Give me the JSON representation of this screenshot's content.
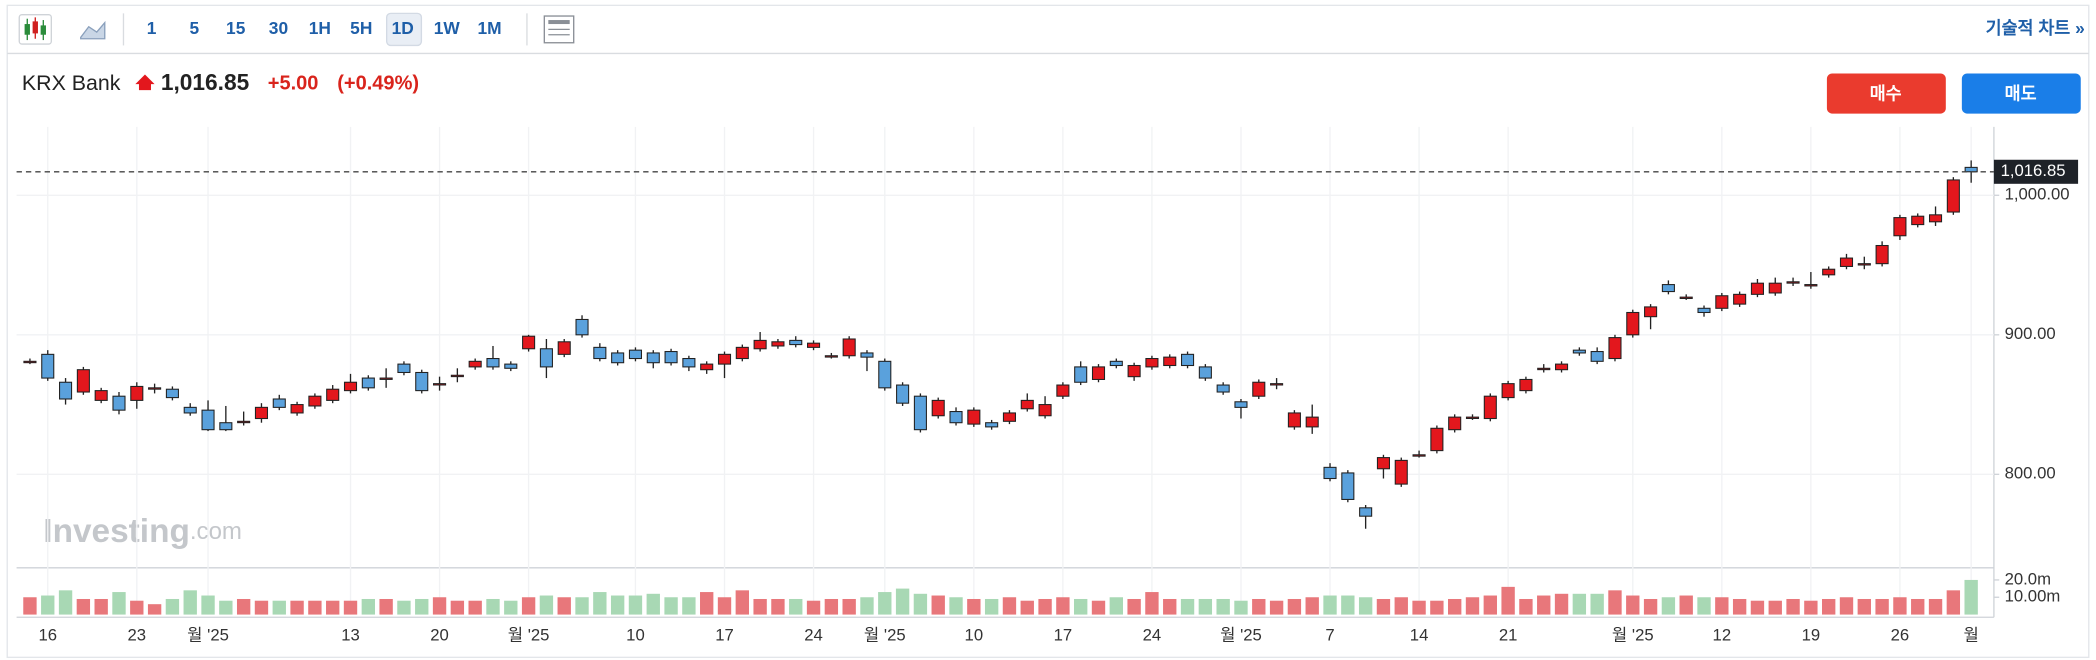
{
  "toolbar": {
    "intervals": [
      "1",
      "5",
      "15",
      "30",
      "1H",
      "5H",
      "1D",
      "1W",
      "1M"
    ],
    "technical_link": "기술적 차트 »"
  },
  "quote": {
    "name": "KRX Bank",
    "price": "1,016.85",
    "change": "+5.00",
    "change_pct": "(+0.49%)"
  },
  "buttons": {
    "buy": "매수",
    "sell": "매도"
  },
  "watermark": {
    "brand": "Investing",
    "suffix": ".com"
  },
  "chart_data": {
    "type": "candlestick",
    "categories": [
      null,
      "16",
      null,
      null,
      null,
      null,
      "23",
      null,
      null,
      null,
      "월 '25",
      null,
      null,
      null,
      null,
      null,
      null,
      null,
      "13",
      null,
      null,
      null,
      null,
      "20",
      null,
      null,
      null,
      null,
      "월 '25",
      null,
      null,
      null,
      null,
      null,
      "10",
      null,
      null,
      null,
      null,
      "17",
      null,
      null,
      null,
      null,
      "24",
      null,
      null,
      null,
      "월 '25",
      null,
      null,
      null,
      null,
      "10",
      null,
      null,
      null,
      null,
      "17",
      null,
      null,
      null,
      null,
      "24",
      null,
      null,
      null,
      null,
      "월 '25",
      null,
      null,
      null,
      null,
      "7",
      null,
      null,
      null,
      null,
      "14",
      null,
      null,
      null,
      null,
      "21",
      null,
      null,
      null,
      null,
      null,
      null,
      "월 '25",
      null,
      null,
      null,
      null,
      "12",
      null,
      null,
      null,
      null,
      "19",
      null,
      null,
      null,
      null,
      "26",
      null,
      null,
      null,
      "월"
    ],
    "ohlc": [
      [
        881,
        883,
        879,
        881
      ],
      [
        886,
        889,
        867,
        869
      ],
      [
        866,
        869,
        850,
        854
      ],
      [
        859,
        877,
        857,
        875
      ],
      [
        853,
        862,
        851,
        860
      ],
      [
        856,
        859,
        843,
        846
      ],
      [
        853,
        866,
        847,
        863
      ],
      [
        862,
        865,
        858,
        862
      ],
      [
        861,
        863,
        853,
        855
      ],
      [
        848,
        851,
        842,
        844
      ],
      [
        846,
        853,
        831,
        832
      ],
      [
        837,
        849,
        831,
        832
      ],
      [
        838,
        845,
        835,
        838
      ],
      [
        840,
        851,
        837,
        848
      ],
      [
        854,
        857,
        846,
        848
      ],
      [
        844,
        852,
        842,
        850
      ],
      [
        849,
        858,
        847,
        856
      ],
      [
        853,
        864,
        851,
        861
      ],
      [
        860,
        872,
        858,
        866
      ],
      [
        869,
        871,
        860,
        862
      ],
      [
        869,
        876,
        862,
        869
      ],
      [
        879,
        881,
        871,
        873
      ],
      [
        873,
        875,
        858,
        860
      ],
      [
        865,
        870,
        860,
        865
      ],
      [
        871,
        876,
        866,
        871
      ],
      [
        877,
        883,
        875,
        881
      ],
      [
        883,
        892,
        875,
        877
      ],
      [
        879,
        881,
        874,
        876
      ],
      [
        890,
        900,
        888,
        899
      ],
      [
        890,
        897,
        869,
        877
      ],
      [
        886,
        897,
        884,
        895
      ],
      [
        911,
        914,
        898,
        900
      ],
      [
        891,
        894,
        881,
        883
      ],
      [
        887,
        889,
        878,
        880
      ],
      [
        889,
        891,
        881,
        883
      ],
      [
        887,
        889,
        876,
        880
      ],
      [
        888,
        890,
        878,
        880
      ],
      [
        883,
        885,
        874,
        877
      ],
      [
        875,
        881,
        872,
        879
      ],
      [
        879,
        888,
        869,
        886
      ],
      [
        883,
        893,
        881,
        891
      ],
      [
        890,
        902,
        888,
        896
      ],
      [
        892,
        897,
        890,
        895
      ],
      [
        896,
        899,
        891,
        893
      ],
      [
        891,
        896,
        889,
        894
      ],
      [
        885,
        887,
        883,
        885
      ],
      [
        885,
        899,
        883,
        897
      ],
      [
        887,
        889,
        874,
        884
      ],
      [
        881,
        883,
        860,
        862
      ],
      [
        864,
        866,
        849,
        851
      ],
      [
        856,
        858,
        830,
        832
      ],
      [
        842,
        855,
        840,
        853
      ],
      [
        845,
        848,
        835,
        837
      ],
      [
        836,
        848,
        834,
        846
      ],
      [
        837,
        839,
        832,
        834
      ],
      [
        838,
        846,
        836,
        844
      ],
      [
        847,
        858,
        845,
        853
      ],
      [
        842,
        856,
        840,
        850
      ],
      [
        856,
        866,
        854,
        864
      ],
      [
        877,
        881,
        864,
        866
      ],
      [
        868,
        879,
        866,
        877
      ],
      [
        881,
        883,
        876,
        878
      ],
      [
        870,
        880,
        867,
        878
      ],
      [
        877,
        885,
        875,
        883
      ],
      [
        878,
        886,
        876,
        884
      ],
      [
        886,
        888,
        876,
        878
      ],
      [
        877,
        879,
        867,
        869
      ],
      [
        864,
        866,
        857,
        859
      ],
      [
        852,
        854,
        840,
        848
      ],
      [
        856,
        868,
        854,
        866
      ],
      [
        865,
        869,
        861,
        865
      ],
      [
        834,
        846,
        832,
        844
      ],
      [
        834,
        850,
        829,
        841
      ],
      [
        805,
        808,
        795,
        797
      ],
      [
        801,
        803,
        780,
        782
      ],
      [
        776,
        778,
        761,
        770
      ],
      [
        804,
        814,
        797,
        812
      ],
      [
        793,
        812,
        791,
        810
      ],
      [
        814,
        817,
        812,
        814
      ],
      [
        817,
        835,
        815,
        833
      ],
      [
        832,
        843,
        830,
        841
      ],
      [
        841,
        843,
        839,
        841
      ],
      [
        840,
        858,
        838,
        856
      ],
      [
        855,
        867,
        853,
        865
      ],
      [
        860,
        870,
        858,
        868
      ],
      [
        876,
        879,
        873,
        876
      ],
      [
        875,
        881,
        873,
        879
      ],
      [
        889,
        891,
        885,
        887
      ],
      [
        888,
        891,
        879,
        881
      ],
      [
        883,
        900,
        881,
        898
      ],
      [
        900,
        918,
        898,
        916
      ],
      [
        913,
        922,
        904,
        920
      ],
      [
        936,
        939,
        929,
        931
      ],
      [
        927,
        929,
        925,
        927
      ],
      [
        919,
        921,
        913,
        916
      ],
      [
        919,
        930,
        917,
        928
      ],
      [
        922,
        931,
        920,
        929
      ],
      [
        929,
        940,
        927,
        937
      ],
      [
        930,
        941,
        928,
        937
      ],
      [
        938,
        941,
        935,
        938
      ],
      [
        936,
        945,
        933,
        936
      ],
      [
        943,
        949,
        941,
        947
      ],
      [
        949,
        958,
        947,
        955
      ],
      [
        951,
        956,
        947,
        951
      ],
      [
        951,
        967,
        949,
        964
      ],
      [
        971,
        986,
        968,
        984
      ],
      [
        979,
        987,
        977,
        985
      ],
      [
        981,
        992,
        978,
        986
      ],
      [
        988,
        1013,
        986,
        1011
      ],
      [
        1020,
        1025,
        1009,
        1016.85
      ]
    ],
    "volume": [
      10,
      11,
      14,
      9,
      9,
      13,
      8,
      6,
      9,
      14,
      11,
      8,
      9,
      8,
      8,
      8,
      8,
      8,
      8,
      9,
      9,
      8,
      9,
      10,
      8,
      8,
      9,
      8,
      10,
      11,
      10,
      10,
      13,
      11,
      11,
      12,
      10,
      10,
      13,
      10,
      14,
      9,
      9,
      9,
      8,
      9,
      9,
      10,
      13,
      15,
      12,
      11,
      10,
      9,
      9,
      10,
      8,
      9,
      10,
      9,
      8,
      10,
      9,
      13,
      9,
      9,
      9,
      9,
      8,
      9,
      8,
      9,
      10,
      11,
      11,
      10,
      9,
      10,
      8,
      8,
      9,
      10,
      11,
      16,
      9,
      11,
      12,
      12,
      12,
      14,
      11,
      9,
      10,
      11,
      10,
      10,
      9,
      8,
      8,
      9,
      8,
      9,
      10,
      9,
      9,
      10,
      9,
      9,
      14,
      20
    ],
    "ylim": [
      733,
      1049
    ],
    "yticks": [
      {
        "value": 800,
        "label": "800.00"
      },
      {
        "value": 900,
        "label": "900.00"
      },
      {
        "value": 1000,
        "label": "1,000.00"
      }
    ],
    "y2lim": [
      0,
      27
    ],
    "y2ticks": [
      {
        "value": 10,
        "label": "10.00m"
      },
      {
        "value": 20,
        "label": "20.0m"
      }
    ],
    "last_price": {
      "value": 1016.85,
      "label": "1,016.85"
    },
    "grid": true,
    "up_color": "#e3171d",
    "down_color": "#5aa1dc",
    "volume_up_color": "#e8777b",
    "volume_down_color": "#a8d8b4"
  }
}
